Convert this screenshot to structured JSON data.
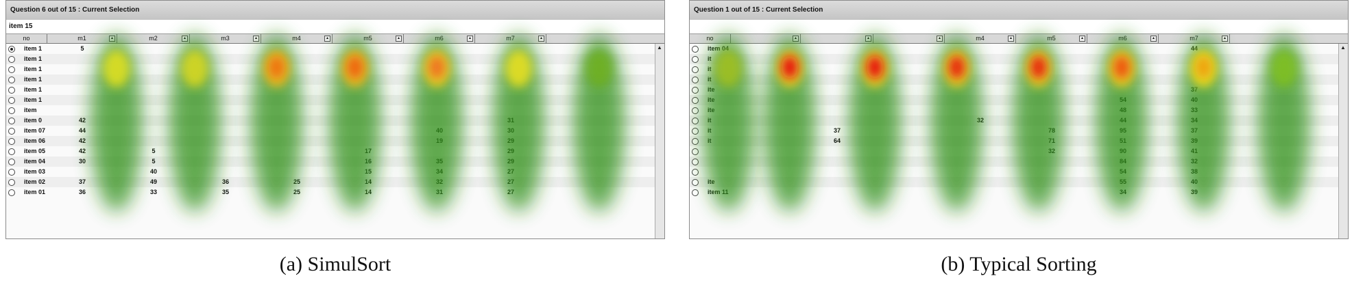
{
  "left_panel": {
    "title": "Question 6 out of 15 : Current Selection",
    "selection": "item 15",
    "columns": [
      "no",
      "m1",
      "m2",
      "m3",
      "m4",
      "m5",
      "m6",
      "m7"
    ],
    "rows": [
      {
        "name": "item 1",
        "vals": [
          "5",
          "",
          "",
          "",
          "",
          "",
          ""
        ],
        "selected": true
      },
      {
        "name": "item 1",
        "vals": [
          "",
          "",
          "",
          "",
          "",
          "",
          ""
        ]
      },
      {
        "name": "item 1",
        "vals": [
          "",
          "",
          "",
          "",
          "",
          "",
          ""
        ]
      },
      {
        "name": "item 1",
        "vals": [
          "",
          "",
          "",
          "",
          "",
          "",
          ""
        ]
      },
      {
        "name": "item 1",
        "vals": [
          "",
          "",
          "",
          "",
          "",
          "",
          ""
        ]
      },
      {
        "name": "item 1",
        "vals": [
          "",
          "",
          "",
          "",
          "",
          "",
          ""
        ]
      },
      {
        "name": "item",
        "vals": [
          "",
          "",
          "",
          "",
          "",
          "",
          ""
        ]
      },
      {
        "name": "item 0",
        "vals": [
          "42",
          "",
          "",
          "",
          "",
          "",
          "31"
        ]
      },
      {
        "name": "item 07",
        "vals": [
          "44",
          "",
          "",
          "",
          "",
          "40",
          "30"
        ]
      },
      {
        "name": "item 06",
        "vals": [
          "42",
          "",
          "",
          "",
          "",
          "19",
          "29"
        ]
      },
      {
        "name": "item 05",
        "vals": [
          "42",
          "5",
          "",
          "",
          "17",
          "",
          "29"
        ]
      },
      {
        "name": "item 04",
        "vals": [
          "30",
          "5",
          "",
          "",
          "16",
          "35",
          "29"
        ]
      },
      {
        "name": "item 03",
        "vals": [
          "",
          "40",
          "",
          "",
          "15",
          "34",
          "27"
        ]
      },
      {
        "name": "item 02",
        "vals": [
          "37",
          "49",
          "36",
          "25",
          "14",
          "32",
          "27"
        ]
      },
      {
        "name": "item 01",
        "vals": [
          "36",
          "33",
          "35",
          "25",
          "14",
          "31",
          "27"
        ]
      }
    ],
    "caption": "(a)  SimulSort"
  },
  "right_panel": {
    "title": "Question 1 out of 15 : Current Selection",
    "selection": "",
    "columns": [
      "no",
      "",
      "",
      "",
      "m4",
      "m5",
      "m6",
      "m7"
    ],
    "rows": [
      {
        "name": "item 04",
        "vals": [
          "",
          "",
          "",
          "",
          "",
          "",
          "44"
        ]
      },
      {
        "name": "it",
        "vals": [
          "",
          "",
          "",
          "",
          "",
          "",
          ""
        ]
      },
      {
        "name": "it",
        "vals": [
          "",
          "",
          "",
          "",
          "",
          "",
          ""
        ]
      },
      {
        "name": "it",
        "vals": [
          "",
          "",
          "",
          "",
          "",
          "",
          ""
        ]
      },
      {
        "name": "ite",
        "vals": [
          "",
          "",
          "",
          "",
          "",
          "",
          "37"
        ]
      },
      {
        "name": "ite",
        "vals": [
          "",
          "",
          "",
          "",
          "",
          "54",
          "40"
        ]
      },
      {
        "name": "ite",
        "vals": [
          "",
          "",
          "",
          "",
          "",
          "48",
          "33"
        ]
      },
      {
        "name": "it",
        "vals": [
          "",
          "",
          "",
          "32",
          "",
          "44",
          "34"
        ]
      },
      {
        "name": "it",
        "vals": [
          "",
          "37",
          "",
          "",
          "78",
          "95",
          "37"
        ]
      },
      {
        "name": "it",
        "vals": [
          "",
          "64",
          "",
          "",
          "71",
          "51",
          "39"
        ]
      },
      {
        "name": "",
        "vals": [
          "",
          "",
          "",
          "",
          "32",
          "90",
          "41"
        ]
      },
      {
        "name": "",
        "vals": [
          "",
          "",
          "",
          "",
          "",
          "84",
          "32"
        ]
      },
      {
        "name": "",
        "vals": [
          "",
          "",
          "",
          "",
          "",
          "54",
          "38"
        ]
      },
      {
        "name": "ite",
        "vals": [
          "",
          "",
          "",
          "",
          "",
          "55",
          "40"
        ]
      },
      {
        "name": "item 11",
        "vals": [
          "",
          "",
          "",
          "",
          "",
          "34",
          "39"
        ]
      }
    ],
    "caption": "(b)  Typical Sorting"
  }
}
